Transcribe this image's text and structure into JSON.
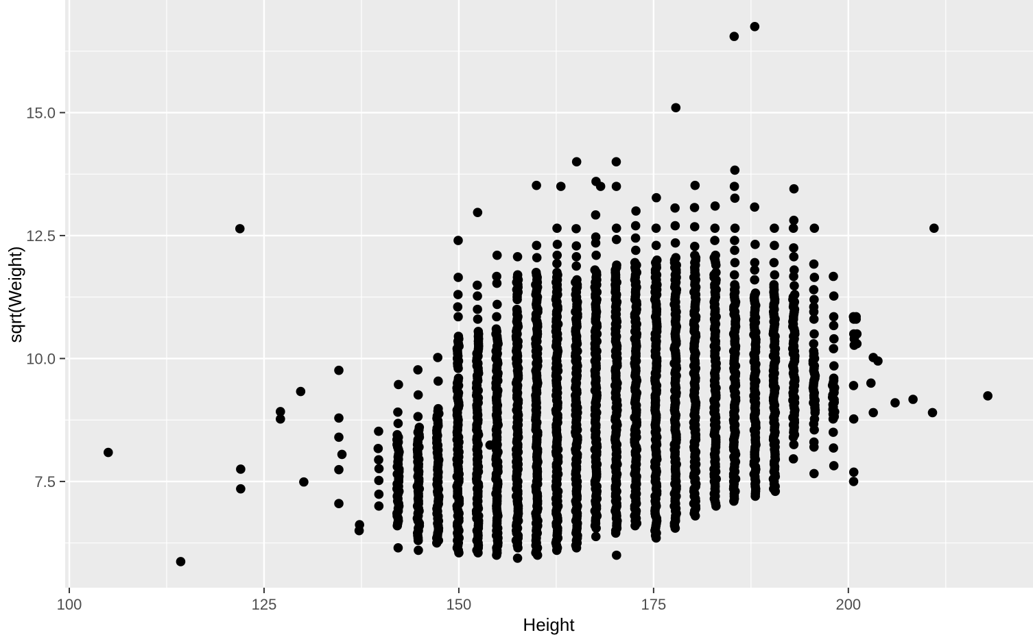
{
  "figure": {
    "xlabel": "Height",
    "ylabel": "sqrt(Weight)"
  },
  "chart_data": {
    "type": "scatter",
    "title": "",
    "xlabel": "Height",
    "ylabel": "sqrt(Weight)",
    "x_ticks": [
      "100",
      "125",
      "150",
      "175",
      "200"
    ],
    "x_tick_values": [
      100,
      125,
      150,
      175,
      200
    ],
    "y_ticks": [
      "7.5",
      "10.0",
      "12.5",
      "15.0"
    ],
    "y_tick_values": [
      7.5,
      10.0,
      12.5,
      15.0
    ],
    "x_minor": [
      112.5,
      137.5,
      162.5,
      187.5,
      212.5
    ],
    "y_minor": [
      6.25,
      8.75,
      11.25,
      13.75,
      16.25
    ],
    "xlim": [
      99.47,
      223.7
    ],
    "ylim": [
      5.34,
      17.29
    ],
    "grid": true,
    "legend": "none",
    "style": {
      "panel_bg": "#EBEBEB",
      "grid_color": "#FFFFFF",
      "tick_label_color": "#4D4D4D",
      "axis_title_color": "#000000",
      "tick_mark_color": "#333333",
      "point_color": "#000000",
      "point_radius": 6.8
    },
    "columns": [
      {
        "x": 137.2,
        "segments": [],
        "dots": [
          6.5,
          6.62
        ]
      },
      {
        "x": 139.7,
        "segments": [],
        "dots": [
          7.0,
          7.24,
          7.52,
          7.76,
          7.94,
          8.17,
          8.52
        ]
      },
      {
        "x": 142.2,
        "segments": [
          [
            6.6,
            8.45
          ]
        ],
        "dots": [
          6.15,
          8.68,
          8.91,
          9.47
        ]
      },
      {
        "x": 144.8,
        "segments": [
          [
            6.3,
            8.6
          ]
        ],
        "dots": [
          6.1,
          8.82,
          9.26,
          9.77
        ]
      },
      {
        "x": 147.3,
        "segments": [
          [
            6.25,
            8.98
          ]
        ],
        "dots": [
          9.54,
          10.02
        ]
      },
      {
        "x": 149.9,
        "segments": [
          [
            6.05,
            9.6
          ],
          [
            9.8,
            10.45
          ]
        ],
        "dots": [
          10.85,
          11.05,
          11.3,
          11.65,
          12.4
        ]
      },
      {
        "x": 152.4,
        "segments": [
          [
            6.05,
            10.55
          ]
        ],
        "dots": [
          10.8,
          11.0,
          11.27,
          11.49,
          12.97
        ]
      },
      {
        "x": 154.9,
        "segments": [
          [
            6.0,
            10.6
          ]
        ],
        "dots": [
          10.85,
          11.1,
          11.53,
          11.67,
          12.1
        ]
      },
      {
        "x": 157.5,
        "segments": [
          [
            6.15,
            11.0
          ],
          [
            11.2,
            11.7
          ]
        ],
        "dots": [
          5.94,
          12.07
        ]
      },
      {
        "x": 160.0,
        "segments": [
          [
            6.0,
            11.75
          ]
        ],
        "dots": [
          12.05,
          12.3,
          13.52
        ]
      },
      {
        "x": 162.6,
        "segments": [
          [
            6.1,
            11.75
          ]
        ],
        "dots": [
          11.93,
          12.1,
          12.32,
          12.65
        ]
      },
      {
        "x": 165.1,
        "segments": [
          [
            6.15,
            11.6
          ]
        ],
        "dots": [
          11.88,
          12.07,
          12.29,
          12.64,
          14.0
        ]
      },
      {
        "x": 167.6,
        "segments": [
          [
            6.55,
            11.8
          ]
        ],
        "dots": [
          6.38,
          12.1,
          12.35,
          12.47,
          12.92,
          13.6
        ]
      },
      {
        "x": 170.2,
        "segments": [
          [
            6.45,
            11.9
          ]
        ],
        "dots": [
          6.0,
          12.42,
          12.65,
          13.5,
          14.0
        ]
      },
      {
        "x": 172.7,
        "segments": [
          [
            6.6,
            11.95
          ]
        ],
        "dots": [
          12.2,
          12.45,
          12.7,
          13.0
        ]
      },
      {
        "x": 175.3,
        "segments": [
          [
            6.35,
            12.0
          ]
        ],
        "dots": [
          12.3,
          12.65,
          13.27
        ]
      },
      {
        "x": 177.8,
        "segments": [
          [
            6.55,
            12.05
          ]
        ],
        "dots": [
          12.35,
          12.7,
          13.06,
          15.1
        ]
      },
      {
        "x": 180.3,
        "segments": [
          [
            6.8,
            12.1
          ]
        ],
        "dots": [
          12.28,
          12.68,
          13.07,
          13.52
        ]
      },
      {
        "x": 182.9,
        "segments": [
          [
            7.0,
            11.75
          ],
          [
            11.9,
            12.1
          ]
        ],
        "dots": [
          12.4,
          12.65,
          13.1
        ]
      },
      {
        "x": 185.4,
        "segments": [
          [
            7.1,
            11.5
          ]
        ],
        "dots": [
          11.7,
          11.95,
          12.2,
          12.4,
          12.65,
          13.26,
          13.5,
          13.83,
          16.55
        ]
      },
      {
        "x": 188.0,
        "segments": [
          [
            7.2,
            11.33
          ]
        ],
        "dots": [
          11.6,
          11.8,
          11.95,
          12.32,
          13.08,
          16.75
        ]
      },
      {
        "x": 190.5,
        "segments": [
          [
            7.3,
            11.5
          ]
        ],
        "dots": [
          11.7,
          11.95,
          12.3,
          12.65
        ]
      },
      {
        "x": 193.0,
        "segments": [
          [
            8.4,
            11.3
          ]
        ],
        "dots": [
          7.96,
          8.25,
          8.5,
          8.65,
          8.77,
          11.48,
          11.67,
          11.8,
          12.07,
          12.25,
          12.65,
          12.81,
          13.45
        ]
      },
      {
        "x": 195.6,
        "segments": [
          [
            8.9,
            10.1
          ]
        ],
        "dots": [
          7.66,
          8.2,
          8.3,
          8.55,
          8.67,
          8.77,
          10.15,
          10.3,
          10.5,
          10.8,
          10.95,
          11.05,
          11.2,
          11.4,
          11.65,
          11.92,
          12.65
        ]
      },
      {
        "x": 198.1,
        "segments": [
          [
            8.77,
            9.6
          ]
        ],
        "dots": [
          7.82,
          8.18,
          8.5,
          9.85,
          10.2,
          10.4,
          10.67,
          10.85,
          11.27,
          11.67
        ]
      },
      {
        "x": 200.7,
        "segments": [],
        "dots": [
          7.5,
          7.69,
          8.77,
          9.45,
          10.27,
          10.4,
          10.5,
          10.8,
          10.85
        ]
      }
    ],
    "outlier_points": [
      [
        105.0,
        8.09
      ],
      [
        114.3,
        5.87
      ],
      [
        121.9,
        12.64
      ],
      [
        122.0,
        7.75
      ],
      [
        122.0,
        7.35
      ],
      [
        127.1,
        8.92
      ],
      [
        127.1,
        8.77
      ],
      [
        129.7,
        9.33
      ],
      [
        130.1,
        7.49
      ],
      [
        134.6,
        9.76
      ],
      [
        134.6,
        8.79
      ],
      [
        134.6,
        8.4
      ],
      [
        135.0,
        8.05
      ],
      [
        134.6,
        7.74
      ],
      [
        134.6,
        7.05
      ],
      [
        154.0,
        8.24
      ],
      [
        163.1,
        13.5
      ],
      [
        168.2,
        13.5
      ],
      [
        201.0,
        10.85
      ],
      [
        201.0,
        10.8
      ],
      [
        201.1,
        10.5
      ],
      [
        201.1,
        10.3
      ],
      [
        202.9,
        9.5
      ],
      [
        203.2,
        10.02
      ],
      [
        203.8,
        9.95
      ],
      [
        203.2,
        8.9
      ],
      [
        206.0,
        9.1
      ],
      [
        208.3,
        9.17
      ],
      [
        210.8,
        8.9
      ],
      [
        211.0,
        12.65
      ],
      [
        217.9,
        9.24
      ]
    ]
  }
}
